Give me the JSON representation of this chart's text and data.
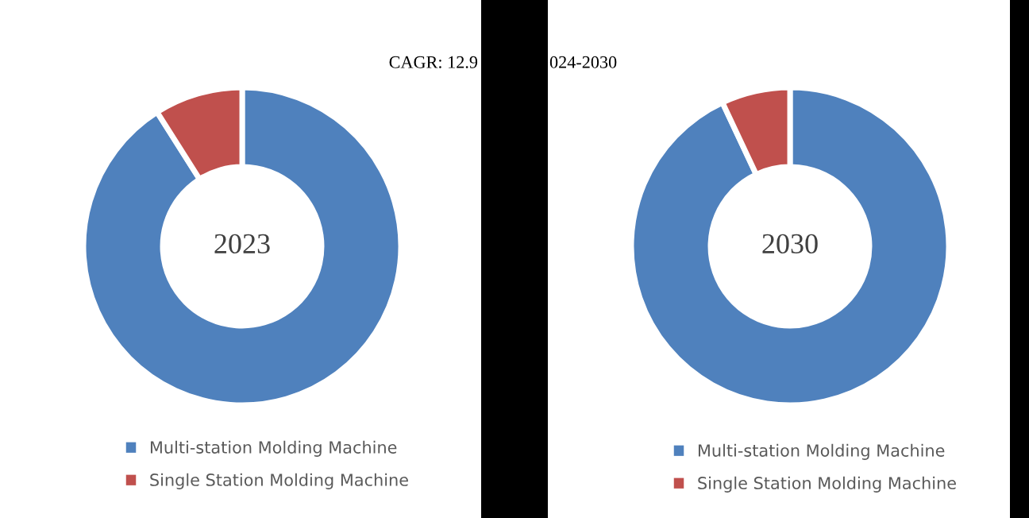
{
  "chart_data": [
    {
      "type": "donut",
      "title": "2023",
      "annotations": [
        "CAGR: 12.9"
      ],
      "categories": [
        "Multi-station Molding Machine",
        "Single Station Molding Machine"
      ],
      "values": [
        91,
        9
      ],
      "colors": [
        "#4f81bd",
        "#c0504d"
      ],
      "legend": "bottom"
    },
    {
      "type": "donut",
      "title": "2030",
      "annotations": [
        "024-2030"
      ],
      "categories": [
        "Multi-station Molding Machine",
        "Single Station Molding Machine"
      ],
      "values": [
        93,
        7
      ],
      "colors": [
        "#4f81bd",
        "#c0504d"
      ],
      "legend": "bottom"
    }
  ]
}
